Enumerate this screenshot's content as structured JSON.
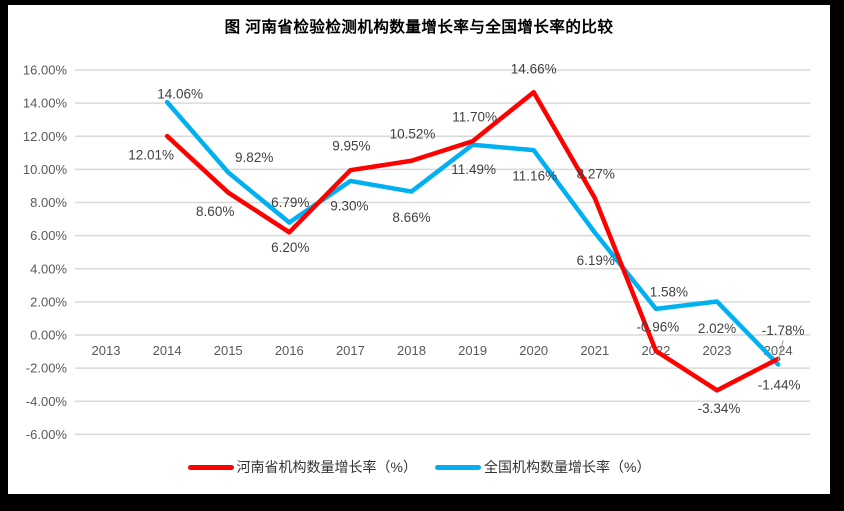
{
  "title": "图  河南省检验检测机构数量增长率与全国增长率的比较",
  "colors": {
    "henan_line": "#FF0000",
    "national_line": "#00B0F0",
    "gridline": "#D9D9D9",
    "axis_text": "#595959",
    "data_label_text": "#404040",
    "frame": "#000000",
    "leader_line": "#A6A6A6",
    "background": "#FFFFFF"
  },
  "legend": {
    "henan_label": "河南省机构数量增长率（%）",
    "national_label": "全国机构数量增长率（%）"
  },
  "chart_data": {
    "type": "line",
    "title": "图  河南省检验检测机构数量增长率与全国增长率的比较",
    "categories": [
      "2013",
      "2014",
      "2015",
      "2016",
      "2017",
      "2018",
      "2019",
      "2020",
      "2021",
      "2022",
      "2023",
      "2024"
    ],
    "series": [
      {
        "name": "河南省机构数量增长率（%）",
        "color": "#FF0000",
        "values": [
          null,
          12.01,
          8.6,
          6.2,
          9.95,
          10.52,
          11.7,
          14.66,
          8.27,
          -0.96,
          -3.34,
          -1.44
        ],
        "labels": [
          null,
          "12.01%",
          "8.60%",
          "6.20%",
          "9.95%",
          "10.52%",
          "11.70%",
          "14.66%",
          "8.27%",
          "-0.96%",
          "-3.34%",
          "-1.44%"
        ],
        "label_offsets": [
          null,
          [
            -16,
            19
          ],
          [
            -13,
            19
          ],
          [
            1,
            15
          ],
          [
            1,
            -24
          ],
          [
            1,
            -27
          ],
          [
            2,
            -24
          ],
          [
            0,
            -23
          ],
          [
            1,
            -24
          ],
          [
            2,
            -24
          ],
          [
            2,
            18
          ],
          [
            1,
            26
          ]
        ]
      },
      {
        "name": "全国机构数量增长率（%）",
        "color": "#00B0F0",
        "values": [
          null,
          14.06,
          9.82,
          6.79,
          9.3,
          8.66,
          11.49,
          11.16,
          6.19,
          1.58,
          2.02,
          -1.78
        ],
        "labels": [
          null,
          "14.06%",
          "9.82%",
          "6.79%",
          "9.30%",
          "8.66%",
          "11.49%",
          "11.16%",
          "6.19%",
          "1.58%",
          "2.02%",
          "-1.78%"
        ],
        "label_offsets": [
          null,
          [
            13,
            -8
          ],
          [
            26,
            -15
          ],
          [
            1,
            -20
          ],
          [
            -1,
            25
          ],
          [
            0,
            26
          ],
          [
            1,
            25
          ],
          [
            1,
            26
          ],
          [
            1,
            28
          ],
          [
            13,
            -17
          ],
          [
            0,
            27
          ],
          [
            5,
            -34
          ]
        ],
        "leader_at": 11
      }
    ],
    "ylim": [
      -6,
      16
    ],
    "ytick_step": 2,
    "yticks": [
      "16.00%",
      "14.00%",
      "12.00%",
      "10.00%",
      "8.00%",
      "6.00%",
      "4.00%",
      "2.00%",
      "0.00%",
      "-2.00%",
      "-4.00%",
      "-6.00%"
    ],
    "ytick_values": [
      16,
      14,
      12,
      10,
      8,
      6,
      4,
      2,
      0,
      -2,
      -4,
      -6
    ],
    "grid": "horizontal",
    "legend_position": "bottom"
  }
}
